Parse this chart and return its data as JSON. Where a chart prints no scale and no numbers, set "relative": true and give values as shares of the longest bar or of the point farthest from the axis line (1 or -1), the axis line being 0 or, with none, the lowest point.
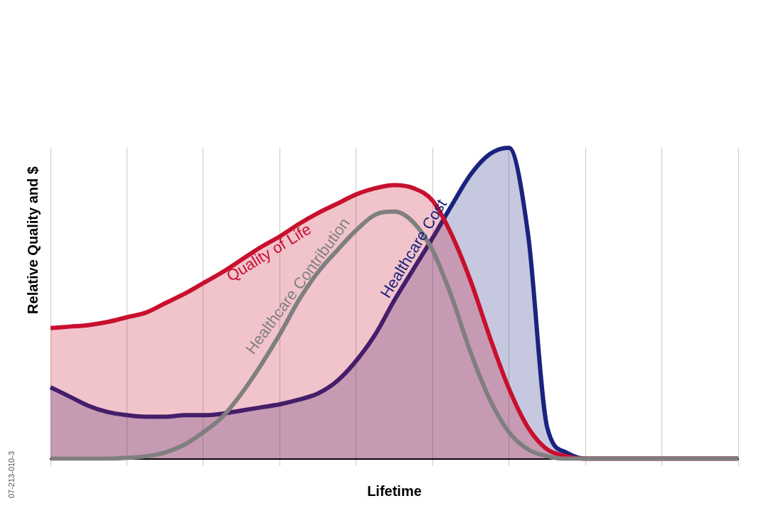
{
  "chart_data": {
    "type": "line",
    "relative": true,
    "xlabel": "Lifetime",
    "ylabel": "Relative Quality and $",
    "categories": [
      null,
      null,
      null,
      null,
      null,
      null,
      null,
      null,
      null,
      null,
      null,
      null,
      null,
      null,
      null,
      null,
      null,
      null,
      null,
      null,
      null,
      null,
      null,
      null,
      null,
      null,
      null,
      null,
      null,
      null,
      null,
      null,
      null,
      null,
      null,
      null,
      null
    ],
    "series": [
      {
        "name": "Quality of Life",
        "type": "area",
        "color": "#c8102e",
        "values": [
          0.42,
          0.425,
          0.43,
          0.44,
          0.455,
          0.47,
          0.5,
          0.53,
          0.565,
          0.6,
          0.64,
          0.68,
          0.715,
          0.755,
          0.79,
          0.82,
          0.85,
          0.87,
          0.88,
          0.87,
          0.83,
          0.72,
          0.57,
          0.39,
          0.225,
          0.1,
          0.03,
          0.008,
          0,
          0,
          0,
          0,
          0,
          0,
          0,
          0,
          0
        ]
      },
      {
        "name": "Healthcare Contribution",
        "type": "line",
        "color": "#7f7f7f",
        "values": [
          0,
          0,
          0,
          0,
          0.003,
          0.008,
          0.02,
          0.045,
          0.085,
          0.135,
          0.21,
          0.3,
          0.4,
          0.51,
          0.6,
          0.67,
          0.735,
          0.785,
          0.795,
          0.76,
          0.67,
          0.52,
          0.34,
          0.19,
          0.085,
          0.03,
          0.008,
          0,
          0,
          0,
          0,
          0,
          0,
          0,
          0,
          0,
          0
        ]
      },
      {
        "name": "Healthcare Cost",
        "type": "area",
        "color": "#1a237e",
        "values": [
          0.23,
          0.2,
          0.17,
          0.15,
          0.14,
          0.135,
          0.135,
          0.14,
          0.14,
          0.145,
          0.155,
          0.165,
          0.175,
          0.19,
          0.21,
          0.25,
          0.315,
          0.4,
          0.51,
          0.61,
          0.71,
          0.815,
          0.915,
          0.98,
          1,
          0.72,
          0.1,
          0.02,
          0,
          0,
          0,
          0,
          0,
          0,
          0,
          0,
          0
        ]
      }
    ],
    "grid": "x",
    "legend": false,
    "marker": "none",
    "annotations": [
      "07-213-010-3"
    ]
  }
}
